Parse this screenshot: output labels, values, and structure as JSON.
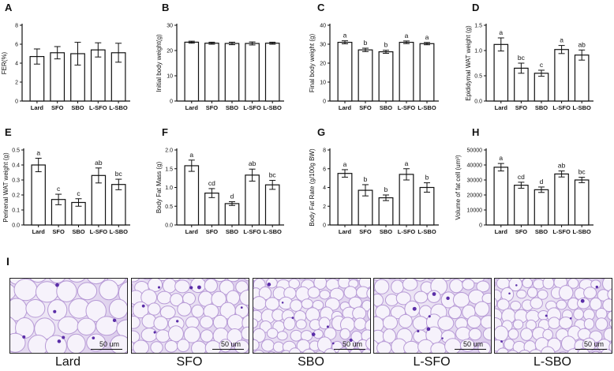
{
  "groups": [
    "Lard",
    "SFO",
    "SBO",
    "L-SFO",
    "L-SBO"
  ],
  "chart_data": [
    {
      "panel": "A",
      "type": "bar",
      "ylabel": "FER(%)",
      "ylim": [
        0,
        8
      ],
      "ticks": [
        0,
        2,
        4,
        6,
        8
      ],
      "categories": [
        "Lard",
        "SFO",
        "SBO",
        "L-SFO",
        "L-SBO"
      ],
      "values": [
        4.7,
        5.1,
        5.0,
        5.4,
        5.1
      ],
      "errors": [
        0.8,
        0.65,
        1.2,
        0.75,
        1.0
      ],
      "letters": [
        "",
        "",
        "",
        "",
        ""
      ]
    },
    {
      "panel": "B",
      "type": "bar",
      "ylabel": "Initial body weight(g)",
      "ylim": [
        0,
        30
      ],
      "ticks": [
        0,
        10,
        20,
        30
      ],
      "categories": [
        "Lard",
        "SFO",
        "SBO",
        "L-SFO",
        "L-SBO"
      ],
      "values": [
        23.3,
        22.9,
        22.8,
        22.8,
        22.9
      ],
      "errors": [
        0.4,
        0.4,
        0.5,
        0.6,
        0.4
      ],
      "letters": [
        "",
        "",
        "",
        "",
        ""
      ]
    },
    {
      "panel": "C",
      "type": "bar",
      "ylabel": "Final body weight (g)",
      "ylim": [
        0,
        40
      ],
      "ticks": [
        0,
        10,
        20,
        30,
        40
      ],
      "categories": [
        "Lard",
        "SFO",
        "SBO",
        "L-SFO",
        "L-SBO"
      ],
      "values": [
        31.0,
        27.0,
        26.0,
        31.0,
        30.3
      ],
      "errors": [
        0.8,
        0.9,
        0.8,
        0.7,
        0.6
      ],
      "letters": [
        "a",
        "b",
        "b",
        "a",
        "a"
      ]
    },
    {
      "panel": "D",
      "type": "bar",
      "ylabel": "Epididymal WAT weight (g)",
      "ylim": [
        0,
        1.5
      ],
      "ticks": [
        "0.0",
        "0.5",
        "1.0",
        "1.5"
      ],
      "categories": [
        "Lard",
        "SFO",
        "SBO",
        "L-SFO",
        "L-SBO"
      ],
      "values": [
        1.12,
        0.65,
        0.55,
        1.02,
        0.91
      ],
      "errors": [
        0.13,
        0.1,
        0.06,
        0.08,
        0.1
      ],
      "letters": [
        "a",
        "bc",
        "c",
        "a",
        "ab"
      ]
    },
    {
      "panel": "E",
      "type": "bar",
      "ylabel": "Perirenal WAT weight (g)",
      "ylim": [
        0,
        0.5
      ],
      "ticks": [
        "0.0",
        "0.1",
        "0.2",
        "0.3",
        "0.4",
        "0.5"
      ],
      "categories": [
        "Lard",
        "SFO",
        "SBO",
        "L-SFO",
        "L-SBO"
      ],
      "values": [
        0.4,
        0.17,
        0.15,
        0.33,
        0.27
      ],
      "errors": [
        0.045,
        0.035,
        0.025,
        0.05,
        0.035
      ],
      "letters": [
        "a",
        "c",
        "c",
        "ab",
        "bc"
      ]
    },
    {
      "panel": "F",
      "type": "bar",
      "ylabel": "Body Fat Mass (g)",
      "ylim": [
        0,
        2.0
      ],
      "ticks": [
        "0.0",
        "0.5",
        "1.0",
        "1.5",
        "2.0"
      ],
      "categories": [
        "Lard",
        "SFO",
        "SBO",
        "L-SFO",
        "L-SBO"
      ],
      "values": [
        1.58,
        0.85,
        0.57,
        1.33,
        1.07
      ],
      "errors": [
        0.15,
        0.12,
        0.05,
        0.16,
        0.12
      ],
      "letters": [
        "a",
        "cd",
        "d",
        "ab",
        "bc"
      ]
    },
    {
      "panel": "G",
      "type": "bar",
      "ylabel": "Body Fat Rate (g/100g BW)",
      "ylim": [
        0,
        8
      ],
      "ticks": [
        0,
        2,
        4,
        6,
        8
      ],
      "categories": [
        "Lard",
        "SFO",
        "SBO",
        "L-SFO",
        "L-SBO"
      ],
      "values": [
        5.5,
        3.7,
        2.9,
        5.4,
        4.0
      ],
      "errors": [
        0.4,
        0.6,
        0.3,
        0.6,
        0.5
      ],
      "letters": [
        "a",
        "b",
        "b",
        "a",
        "b"
      ]
    },
    {
      "panel": "H",
      "type": "bar",
      "ylabel": "Volume of fat cell (um³)",
      "ylim": [
        0,
        50000
      ],
      "ticks": [
        "0",
        "10000",
        "20000",
        "30000",
        "40000",
        "50000"
      ],
      "categories": [
        "Lard",
        "SFO",
        "SBO",
        "L-SFO",
        "L-SBO"
      ],
      "values": [
        38500,
        26500,
        23500,
        34000,
        30000
      ],
      "errors": [
        2500,
        2000,
        1800,
        2000,
        1800
      ],
      "letters": [
        "a",
        "cd",
        "d",
        "ab",
        "bc"
      ]
    }
  ],
  "micrographs": {
    "panel": "I",
    "scale_bar": "50 um",
    "labels": [
      "Lard",
      "SFO",
      "SBO",
      "L-SFO",
      "L-SBO"
    ]
  }
}
